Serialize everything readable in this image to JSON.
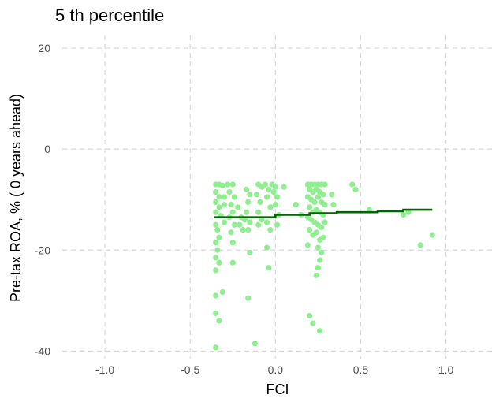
{
  "chart_data": {
    "type": "scatter",
    "title": "5 th percentile",
    "xlabel": "FCI",
    "ylabel": "Pre-tax ROA, % ( 0  years ahead)",
    "xlim": [
      -1.25,
      1.27
    ],
    "ylim": [
      -41.5,
      22.5
    ],
    "xticks": [
      -1.0,
      -0.5,
      0.0,
      0.5,
      1.0
    ],
    "xtick_labels": [
      "-1.0",
      "-0.5",
      "0.0",
      "0.5",
      "1.0"
    ],
    "yticks": [
      20,
      0,
      -20,
      -40
    ],
    "ytick_labels": [
      "20",
      "0",
      "-20",
      "-40"
    ],
    "grid": true,
    "point_color": "#90ee90",
    "line_color": "#006400",
    "points": [
      [
        -0.35,
        -7.0
      ],
      [
        -0.33,
        -7.0
      ],
      [
        -0.31,
        -7.2
      ],
      [
        -0.35,
        -8.5
      ],
      [
        -0.33,
        -9.5
      ],
      [
        -0.35,
        -10.5
      ],
      [
        -0.33,
        -11.5
      ],
      [
        -0.35,
        -12.5
      ],
      [
        -0.32,
        -13.2
      ],
      [
        -0.35,
        -15.0
      ],
      [
        -0.34,
        -16.0
      ],
      [
        -0.33,
        -17.5
      ],
      [
        -0.35,
        -18.5
      ],
      [
        -0.34,
        -20.0
      ],
      [
        -0.35,
        -21.5
      ],
      [
        -0.33,
        -22.5
      ],
      [
        -0.35,
        -24.0
      ],
      [
        -0.35,
        -29.0
      ],
      [
        -0.31,
        -28.3
      ],
      [
        -0.35,
        -32.5
      ],
      [
        -0.33,
        -34.0
      ],
      [
        -0.35,
        -39.3
      ],
      [
        -0.3,
        -9.5
      ],
      [
        -0.3,
        -11.0
      ],
      [
        -0.3,
        -14.5
      ],
      [
        -0.28,
        -7.0
      ],
      [
        -0.25,
        -7.0
      ],
      [
        -0.27,
        -8.5
      ],
      [
        -0.24,
        -9.5
      ],
      [
        -0.26,
        -11.0
      ],
      [
        -0.25,
        -12.5
      ],
      [
        -0.27,
        -13.5
      ],
      [
        -0.24,
        -15.0
      ],
      [
        -0.26,
        -16.5
      ],
      [
        -0.25,
        -18.5
      ],
      [
        -0.25,
        -22.5
      ],
      [
        -0.22,
        -11.5
      ],
      [
        -0.2,
        -13.5
      ],
      [
        -0.18,
        -14.0
      ],
      [
        -0.21,
        -15.0
      ],
      [
        -0.19,
        -16.0
      ],
      [
        -0.17,
        -8.0
      ],
      [
        -0.15,
        -9.0
      ],
      [
        -0.16,
        -10.5
      ],
      [
        -0.17,
        -12.5
      ],
      [
        -0.15,
        -14.5
      ],
      [
        -0.16,
        -16.0
      ],
      [
        -0.15,
        -20.5
      ],
      [
        -0.16,
        -29.5
      ],
      [
        -0.12,
        -38.5
      ],
      [
        -0.1,
        -7.0
      ],
      [
        -0.08,
        -7.5
      ],
      [
        -0.11,
        -9.0
      ],
      [
        -0.09,
        -10.5
      ],
      [
        -0.1,
        -12.5
      ],
      [
        -0.08,
        -14.0
      ],
      [
        -0.1,
        -15.0
      ],
      [
        -0.06,
        -7.0
      ],
      [
        -0.04,
        -8.0
      ],
      [
        -0.05,
        -9.5
      ],
      [
        -0.03,
        -11.5
      ],
      [
        -0.05,
        -14.5
      ],
      [
        -0.03,
        -16.0
      ],
      [
        -0.05,
        -19.5
      ],
      [
        -0.04,
        -23.5
      ],
      [
        -0.02,
        -7.0
      ],
      [
        0.0,
        -7.5
      ],
      [
        -0.01,
        -8.5
      ],
      [
        0.01,
        -9.5
      ],
      [
        0.0,
        -11.0
      ],
      [
        0.02,
        -13.0
      ],
      [
        0.01,
        -15.0
      ],
      [
        0.05,
        -7.5
      ],
      [
        0.12,
        -11.0
      ],
      [
        0.15,
        -13.0
      ],
      [
        0.19,
        -7.0
      ],
      [
        0.21,
        -7.0
      ],
      [
        0.23,
        -7.0
      ],
      [
        0.25,
        -7.0
      ],
      [
        0.27,
        -7.0
      ],
      [
        0.29,
        -7.0
      ],
      [
        0.2,
        -8.0
      ],
      [
        0.22,
        -8.5
      ],
      [
        0.24,
        -8.0
      ],
      [
        0.26,
        -8.5
      ],
      [
        0.28,
        -9.0
      ],
      [
        0.19,
        -9.5
      ],
      [
        0.21,
        -10.0
      ],
      [
        0.23,
        -10.5
      ],
      [
        0.25,
        -9.5
      ],
      [
        0.27,
        -10.5
      ],
      [
        0.29,
        -11.0
      ],
      [
        0.2,
        -11.5
      ],
      [
        0.22,
        -12.5
      ],
      [
        0.24,
        -12.0
      ],
      [
        0.26,
        -12.5
      ],
      [
        0.28,
        -13.0
      ],
      [
        0.19,
        -13.5
      ],
      [
        0.21,
        -14.0
      ],
      [
        0.23,
        -14.5
      ],
      [
        0.25,
        -15.0
      ],
      [
        0.27,
        -15.5
      ],
      [
        0.29,
        -14.5
      ],
      [
        0.2,
        -16.0
      ],
      [
        0.22,
        -17.0
      ],
      [
        0.24,
        -16.5
      ],
      [
        0.26,
        -18.0
      ],
      [
        0.28,
        -17.5
      ],
      [
        0.19,
        -19.0
      ],
      [
        0.25,
        -19.5
      ],
      [
        0.27,
        -20.5
      ],
      [
        0.26,
        -22.0
      ],
      [
        0.25,
        -23.5
      ],
      [
        0.24,
        -25.0
      ],
      [
        0.2,
        -33.0
      ],
      [
        0.22,
        -34.5
      ],
      [
        0.26,
        -36.0
      ],
      [
        0.33,
        -9.0
      ],
      [
        0.34,
        -11.0
      ],
      [
        0.45,
        -7.0
      ],
      [
        0.47,
        -8.0
      ],
      [
        0.55,
        -12.0
      ],
      [
        0.78,
        -12.5
      ],
      [
        0.75,
        -13.0
      ],
      [
        0.85,
        -19.0
      ],
      [
        0.92,
        -17.0
      ]
    ],
    "fit_steps": [
      [
        -0.36,
        0.0,
        -13.5
      ],
      [
        0.0,
        0.2,
        -13.0
      ],
      [
        0.2,
        0.36,
        -12.7
      ],
      [
        0.36,
        0.6,
        -12.5
      ],
      [
        0.6,
        0.75,
        -12.3
      ],
      [
        0.75,
        0.92,
        -12.0
      ]
    ]
  }
}
